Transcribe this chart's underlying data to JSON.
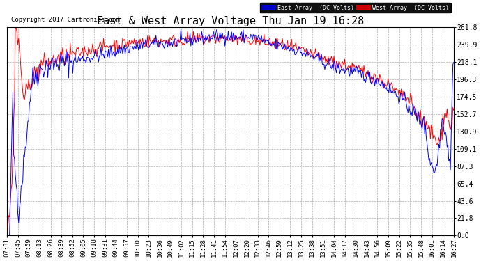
{
  "title": "East & West Array Voltage Thu Jan 19 16:28",
  "copyright": "Copyright 2017 Cartronics.com",
  "legend_east": "East Array  (DC Volts)",
  "legend_west": "West Array  (DC Volts)",
  "east_color": "#0000ff",
  "west_color": "#ff0000",
  "legend_east_bg": "#0000cc",
  "legend_west_bg": "#cc0000",
  "bg_color": "#ffffff",
  "grid_color": "#b0b0b0",
  "ylim_min": 0.0,
  "ylim_max": 261.8,
  "yticks": [
    0.0,
    21.8,
    43.6,
    65.4,
    87.3,
    109.1,
    130.9,
    152.7,
    174.5,
    196.3,
    218.1,
    239.9,
    261.8
  ],
  "xtick_labels": [
    "07:31",
    "07:45",
    "07:59",
    "08:13",
    "08:26",
    "08:39",
    "08:52",
    "09:05",
    "09:18",
    "09:31",
    "09:44",
    "09:57",
    "10:10",
    "10:23",
    "10:36",
    "10:49",
    "11:02",
    "11:15",
    "11:28",
    "11:41",
    "11:54",
    "12:07",
    "12:20",
    "12:33",
    "12:46",
    "12:59",
    "13:12",
    "13:25",
    "13:38",
    "13:51",
    "14:04",
    "14:17",
    "14:30",
    "14:43",
    "14:56",
    "15:09",
    "15:22",
    "15:35",
    "15:48",
    "16:01",
    "16:14",
    "16:27"
  ],
  "title_fontsize": 11,
  "axis_fontsize": 7,
  "copyright_fontsize": 6.5
}
